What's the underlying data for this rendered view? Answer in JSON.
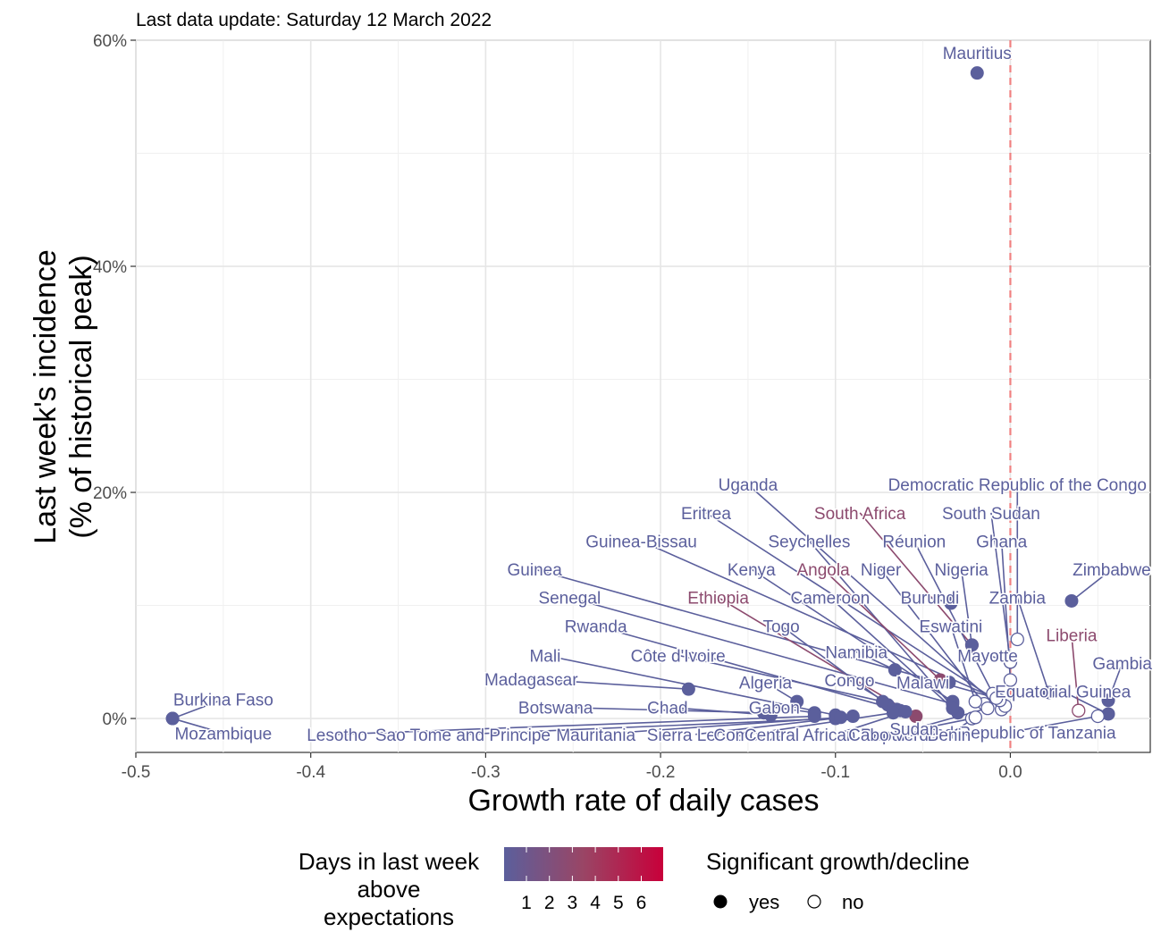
{
  "chart_data": {
    "type": "scatter",
    "subtitle": "Last data update: Saturday 12 March 2022",
    "xlabel": "Growth rate of daily cases",
    "ylabel": [
      "Last week's incidence",
      "(% of historical peak)"
    ],
    "xlim": [
      -0.5,
      0.08
    ],
    "ylim": [
      -3,
      60
    ],
    "x_ticks": [
      -0.5,
      -0.4,
      -0.3,
      -0.2,
      -0.1,
      0.0
    ],
    "x_tick_labels": [
      "-0.5",
      "-0.4",
      "-0.3",
      "-0.2",
      "-0.1",
      "0.0"
    ],
    "y_ticks": [
      0,
      20,
      40,
      60
    ],
    "y_tick_labels": [
      "0%",
      "20%",
      "40%",
      "60%"
    ],
    "grid": true,
    "reference_line_x": 0,
    "colors": {
      "low": "#5b5f9c",
      "mid": "#8c4a6e",
      "high": "#c8003a",
      "ref": "#f08080"
    },
    "legend": {
      "color_title": [
        "Days in last week",
        "above",
        "expectations"
      ],
      "color_values": [
        "1",
        "2",
        "3",
        "4",
        "5",
        "6"
      ],
      "shape_title": "Significant growth/decline",
      "shape_items": [
        {
          "label": "yes",
          "filled": true
        },
        {
          "label": "no",
          "filled": false
        }
      ],
      "position": "bottom"
    },
    "points": [
      {
        "name": "Mauritius",
        "x": -0.019,
        "y": 57.1,
        "sig": true,
        "days": 1,
        "lx": -0.019,
        "ly": 58.5
      },
      {
        "name": "Burkina Faso",
        "x": -0.479,
        "y": 0.0,
        "sig": true,
        "days": 1,
        "lx": -0.45,
        "ly": 1.3
      },
      {
        "name": "Mozambique",
        "x": -0.479,
        "y": 0.0,
        "sig": true,
        "days": 1,
        "lx": -0.45,
        "ly": -1.7
      },
      {
        "name": "Zimbabwe",
        "x": 0.035,
        "y": 10.4,
        "sig": true,
        "days": 1,
        "lx": 0.058,
        "ly": 12.8
      },
      {
        "name": "Gambia",
        "x": 0.056,
        "y": 1.6,
        "sig": true,
        "days": 1,
        "lx": 0.064,
        "ly": 4.5
      },
      {
        "name": "Equatorial Guinea",
        "x": 0.056,
        "y": 0.4,
        "sig": true,
        "days": 1,
        "lx": 0.03,
        "ly": 2.0
      },
      {
        "name": "United Republic of Tanzania",
        "x": 0.05,
        "y": 0.2,
        "sig": false,
        "days": 1,
        "lx": 0.0,
        "ly": -1.6
      },
      {
        "name": "Liberia",
        "x": 0.039,
        "y": 0.7,
        "sig": false,
        "days": 3,
        "lx": 0.035,
        "ly": 7.0
      },
      {
        "name": "Democratic Republic of the Congo",
        "x": 0.004,
        "y": 7.0,
        "sig": false,
        "days": 1,
        "lx": 0.004,
        "ly": 20.3
      },
      {
        "name": "South Sudan",
        "x": 0.0,
        "y": 5.0,
        "sig": false,
        "days": 1,
        "lx": -0.011,
        "ly": 17.8
      },
      {
        "name": "Ghana",
        "x": 0.0,
        "y": 3.4,
        "sig": false,
        "days": 1,
        "lx": -0.005,
        "ly": 15.3
      },
      {
        "name": "Zambia",
        "x": 0.022,
        "y": 2.3,
        "sig": true,
        "days": 1,
        "lx": 0.004,
        "ly": 10.3
      },
      {
        "name": "Uganda",
        "x": -0.005,
        "y": 0.8,
        "sig": false,
        "days": 1,
        "lx": -0.15,
        "ly": 20.3
      },
      {
        "name": "Eritrea",
        "x": -0.003,
        "y": 1.1,
        "sig": false,
        "days": 1,
        "lx": -0.174,
        "ly": 17.8
      },
      {
        "name": "South Africa",
        "x": -0.022,
        "y": 6.5,
        "sig": true,
        "days": 3,
        "lx": -0.086,
        "ly": 17.8
      },
      {
        "name": "Guinea-Bissau",
        "x": -0.006,
        "y": 1.6,
        "sig": false,
        "days": 1,
        "lx": -0.211,
        "ly": 15.3
      },
      {
        "name": "Seychelles",
        "x": -0.03,
        "y": 0.5,
        "sig": true,
        "days": 1,
        "lx": -0.115,
        "ly": 15.3
      },
      {
        "name": "Réunion",
        "x": -0.01,
        "y": 2.2,
        "sig": false,
        "days": 1,
        "lx": -0.055,
        "ly": 15.3
      },
      {
        "name": "Nigeria",
        "x": -0.022,
        "y": 6.5,
        "sig": true,
        "days": 1,
        "lx": -0.028,
        "ly": 12.8
      },
      {
        "name": "Guinea",
        "x": -0.008,
        "y": 1.8,
        "sig": false,
        "days": 1,
        "lx": -0.272,
        "ly": 12.8
      },
      {
        "name": "Kenya",
        "x": -0.033,
        "y": 1.5,
        "sig": true,
        "days": 1,
        "lx": -0.148,
        "ly": 12.8
      },
      {
        "name": "Angola",
        "x": -0.04,
        "y": 3.4,
        "sig": true,
        "days": 2,
        "lx": -0.107,
        "ly": 12.8
      },
      {
        "name": "Niger",
        "x": -0.015,
        "y": 1.3,
        "sig": false,
        "days": 1,
        "lx": -0.074,
        "ly": 12.8
      },
      {
        "name": "Senegal",
        "x": -0.033,
        "y": 1.3,
        "sig": true,
        "days": 1,
        "lx": -0.252,
        "ly": 10.3
      },
      {
        "name": "Ethiopia",
        "x": -0.054,
        "y": 0.2,
        "sig": true,
        "days": 3,
        "lx": -0.167,
        "ly": 10.3
      },
      {
        "name": "Cameroon",
        "x": -0.033,
        "y": 0.9,
        "sig": true,
        "days": 1,
        "lx": -0.103,
        "ly": 10.3
      },
      {
        "name": "Burundi",
        "x": -0.034,
        "y": 10.2,
        "sig": true,
        "days": 1,
        "lx": -0.046,
        "ly": 10.3
      },
      {
        "name": "Eswatini",
        "x": -0.02,
        "y": 1.5,
        "sig": false,
        "days": 1,
        "lx": -0.034,
        "ly": 7.8
      },
      {
        "name": "Rwanda",
        "x": -0.065,
        "y": 0.8,
        "sig": true,
        "days": 1,
        "lx": -0.237,
        "ly": 7.8
      },
      {
        "name": "Togo",
        "x": -0.07,
        "y": 1.2,
        "sig": true,
        "days": 1,
        "lx": -0.131,
        "ly": 7.8
      },
      {
        "name": "Mayotte",
        "x": 0.0,
        "y": 5.0,
        "sig": false,
        "days": 1,
        "lx": -0.013,
        "ly": 5.2
      },
      {
        "name": "Mali",
        "x": -0.1,
        "y": 0.3,
        "sig": true,
        "days": 1,
        "lx": -0.266,
        "ly": 5.2
      },
      {
        "name": "Côte d'Ivoire",
        "x": -0.073,
        "y": 1.5,
        "sig": true,
        "days": 1,
        "lx": -0.19,
        "ly": 5.2
      },
      {
        "name": "Namibia",
        "x": -0.066,
        "y": 4.3,
        "sig": true,
        "days": 1,
        "lx": -0.088,
        "ly": 5.5
      },
      {
        "name": "Madagascar",
        "x": -0.184,
        "y": 2.6,
        "sig": true,
        "days": 1,
        "lx": -0.274,
        "ly": 3.1
      },
      {
        "name": "Algeria",
        "x": -0.122,
        "y": 1.5,
        "sig": true,
        "days": 1,
        "lx": -0.14,
        "ly": 2.8
      },
      {
        "name": "Congo",
        "x": -0.063,
        "y": 0.7,
        "sig": true,
        "days": 1,
        "lx": -0.092,
        "ly": 3.0
      },
      {
        "name": "Malawi",
        "x": -0.035,
        "y": 3.2,
        "sig": true,
        "days": 1,
        "lx": -0.05,
        "ly": 2.8
      },
      {
        "name": "Botswana",
        "x": -0.141,
        "y": 0.5,
        "sig": true,
        "days": 1,
        "lx": -0.26,
        "ly": 0.6
      },
      {
        "name": "Chad",
        "x": -0.137,
        "y": 0.3,
        "sig": true,
        "days": 1,
        "lx": -0.196,
        "ly": 0.6
      },
      {
        "name": "Gabon",
        "x": -0.112,
        "y": 0.5,
        "sig": true,
        "days": 1,
        "lx": -0.135,
        "ly": 0.6
      },
      {
        "name": "Lesotho",
        "x": -0.112,
        "y": 0.2,
        "sig": true,
        "days": 1,
        "lx": -0.385,
        "ly": -1.8
      },
      {
        "name": "Sao Tome and Principe",
        "x": -0.1,
        "y": 0.0,
        "sig": true,
        "days": 1,
        "lx": -0.313,
        "ly": -1.8
      },
      {
        "name": "Mauritania",
        "x": -0.097,
        "y": 0.1,
        "sig": true,
        "days": 1,
        "lx": -0.237,
        "ly": -1.8
      },
      {
        "name": "Sierra Leone",
        "x": -0.09,
        "y": 0.2,
        "sig": true,
        "days": 1,
        "lx": -0.18,
        "ly": -1.8
      },
      {
        "name": "Comoros",
        "x": -0.067,
        "y": 0.5,
        "sig": true,
        "days": 1,
        "lx": -0.15,
        "ly": -1.8
      },
      {
        "name": "Central African Republic",
        "x": -0.06,
        "y": 0.6,
        "sig": true,
        "days": 1,
        "lx": -0.1,
        "ly": -1.8
      },
      {
        "name": "Cabo Verde",
        "x": -0.022,
        "y": 0.0,
        "sig": false,
        "days": 1,
        "lx": -0.067,
        "ly": -1.8
      },
      {
        "name": "Benin",
        "x": -0.02,
        "y": 0.1,
        "sig": false,
        "days": 1,
        "lx": -0.035,
        "ly": -1.8
      },
      {
        "name": "Sudan",
        "x": -0.013,
        "y": 0.9,
        "sig": false,
        "days": 1,
        "lx": -0.055,
        "ly": -1.3
      }
    ]
  }
}
